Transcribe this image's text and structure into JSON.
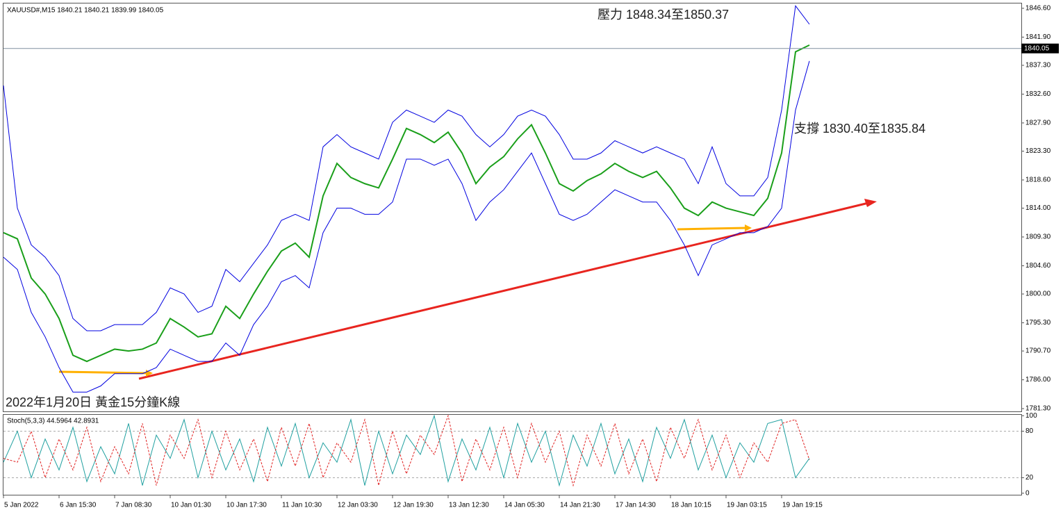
{
  "chart_data": [
    {
      "type": "line",
      "header": "XAUUSD#,M15  1840.21 1840.21 1839.99 1840.05",
      "annotations": [
        "壓力 1848.34至1850.37",
        "支撐 1830.40至1835.84",
        "2022年1月20日 黃金15分鐘K線"
      ],
      "categories": [
        "5 Jan 2022",
        null,
        null,
        null,
        "6 Jan 15:30",
        null,
        null,
        null,
        "7 Jan 08:30",
        null,
        null,
        null,
        "10 Jan 01:30",
        null,
        null,
        null,
        "10 Jan 17:30",
        null,
        null,
        null,
        "11 Jan 10:30",
        null,
        null,
        null,
        "12 Jan 03:30",
        null,
        null,
        null,
        "12 Jan 19:30",
        null,
        null,
        null,
        "13 Jan 12:30",
        null,
        null,
        null,
        "14 Jan 05:30",
        null,
        null,
        null,
        "14 Jan 21:30",
        null,
        null,
        null,
        "17 Jan 14:30",
        null,
        null,
        null,
        "18 Jan 10:15",
        null,
        null,
        null,
        "19 Jan 03:15",
        null,
        null,
        null,
        "19 Jan 19:15",
        null,
        null
      ],
      "series": [
        {
          "color": "#1a9f1a",
          "values": [
            1810,
            1809,
            1802.6,
            1800,
            1796,
            1790,
            1789,
            1790,
            1791,
            1790.7,
            1791,
            1792,
            1796,
            1794.6,
            1793,
            1793.5,
            1798,
            1796,
            1800,
            1803.7,
            1807,
            1808.3,
            1806,
            1816,
            1821.3,
            1819,
            1818,
            1817.3,
            1822,
            1827,
            1826,
            1824.7,
            1826.4,
            1823,
            1818,
            1820.7,
            1822.4,
            1825.3,
            1827.6,
            1823,
            1818,
            1816.8,
            1818.5,
            1819.6,
            1821.3,
            1820,
            1819,
            1820,
            1817.3,
            1814,
            1812.8,
            1815,
            1814,
            1813.4,
            1812.8,
            1815.6,
            1823,
            1839.5,
            1840.6
          ]
        },
        {
          "color": "#0000e0",
          "values": [
            1834,
            1814,
            1808,
            1806,
            1803,
            1796,
            1794,
            1794,
            1795,
            1795,
            1795,
            1797,
            1801,
            1800,
            1797,
            1798,
            1804,
            1802,
            1805,
            1808,
            1812,
            1813,
            1812,
            1824,
            1826,
            1824,
            1823,
            1822,
            1828,
            1830,
            1829,
            1828,
            1830,
            1829,
            1826,
            1824,
            1826,
            1829,
            1830,
            1829,
            1826,
            1822,
            1822,
            1823,
            1825,
            1824,
            1823,
            1824,
            1823,
            1822,
            1818,
            1824,
            1818,
            1816,
            1816,
            1819,
            1830,
            1847,
            1844
          ]
        },
        {
          "color": "#0000e0",
          "values": [
            1806,
            1804,
            1797,
            1793,
            1788,
            1784,
            1784,
            1785,
            1787,
            1787,
            1787,
            1788,
            1791,
            1790,
            1789,
            1789,
            1792,
            1790,
            1795,
            1798,
            1802,
            1803,
            1801,
            1810,
            1814,
            1814,
            1813,
            1813,
            1815,
            1822,
            1822,
            1821,
            1822,
            1818,
            1812,
            1815,
            1817,
            1820,
            1823,
            1818,
            1813,
            1812,
            1813,
            1815,
            1817,
            1816,
            1815,
            1815,
            1812,
            1808,
            1803,
            1808,
            1809,
            1810,
            1810,
            1811,
            1814,
            1830,
            1838
          ]
        }
      ],
      "last_price": {
        "value": 1840.05,
        "label": "1840.05"
      },
      "ylim": [
        1780.85,
        1847.5
      ],
      "yticks": [
        {
          "value": 1846.6,
          "label": "1846.60"
        },
        {
          "value": 1841.9,
          "label": "1841.90"
        },
        {
          "value": 1837.3,
          "label": "1837.30"
        },
        {
          "value": 1832.6,
          "label": "1832.60"
        },
        {
          "value": 1827.9,
          "label": "1827.90"
        },
        {
          "value": 1823.3,
          "label": "1823.30"
        },
        {
          "value": 1818.6,
          "label": "1818.60"
        },
        {
          "value": 1814,
          "label": "1814.00"
        },
        {
          "value": 1809.3,
          "label": "1809.30"
        },
        {
          "value": 1804.6,
          "label": "1804.60"
        },
        {
          "value": 1800,
          "label": "1800.00"
        },
        {
          "value": 1795.3,
          "label": "1795.30"
        },
        {
          "value": 1790.7,
          "label": "1790.70"
        },
        {
          "value": 1786,
          "label": "1786.00"
        },
        {
          "value": 1781.3,
          "label": "1781.30"
        }
      ]
    },
    {
      "type": "line",
      "header": "Stoch(5,3,3) 44.5964 42.8931",
      "series": [
        {
          "color": "#20a0a0",
          "values": [
            40,
            80,
            20,
            70,
            30,
            85,
            15,
            60,
            25,
            90,
            10,
            75,
            45,
            95,
            20,
            80,
            30,
            70,
            15,
            85,
            35,
            90,
            20,
            65,
            40,
            95,
            10,
            80,
            25,
            75,
            50,
            100,
            15,
            70,
            30,
            85,
            20,
            90,
            40,
            80,
            10,
            75,
            35,
            90,
            25,
            70,
            15,
            85,
            45,
            95,
            30,
            75,
            20,
            65,
            40,
            90,
            95,
            20,
            45
          ]
        },
        {
          "color": "#e02020",
          "dashed": true,
          "values": [
            45,
            40,
            80,
            20,
            70,
            30,
            85,
            15,
            60,
            25,
            90,
            10,
            75,
            45,
            95,
            20,
            80,
            30,
            70,
            15,
            85,
            35,
            90,
            20,
            65,
            40,
            95,
            10,
            80,
            25,
            75,
            50,
            100,
            15,
            70,
            30,
            85,
            20,
            90,
            40,
            80,
            10,
            75,
            35,
            90,
            25,
            70,
            15,
            85,
            45,
            95,
            30,
            75,
            20,
            65,
            40,
            90,
            95,
            43
          ]
        }
      ],
      "ylim": [
        -2,
        102
      ],
      "yticks": [
        100,
        80,
        20,
        0
      ],
      "levels": [
        80,
        20
      ]
    }
  ]
}
